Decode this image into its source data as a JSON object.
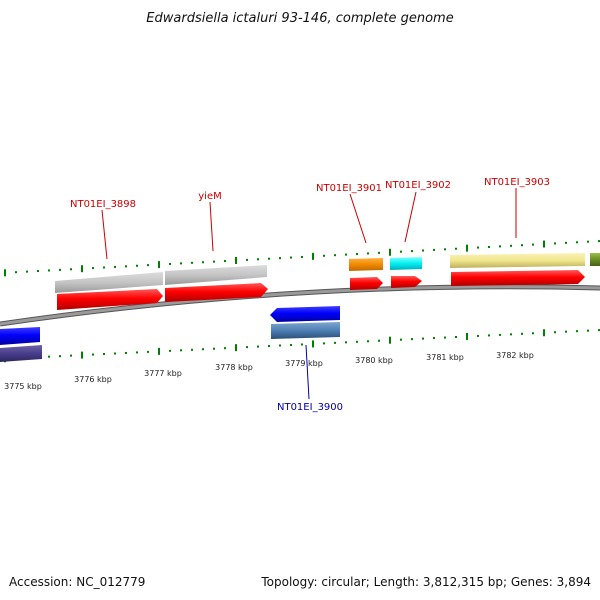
{
  "title": "Edwardsiella ictaluri 93-146, complete genome",
  "footer": {
    "accession": "Accession: NC_012779",
    "topology": "Topology: circular; Length: 3,812,315 bp; Genes: 3,894"
  },
  "scale": {
    "ticks": [
      "3775 kbp",
      "3776 kbp",
      "3777 kbp",
      "3778 kbp",
      "3779 kbp",
      "3780 kbp",
      "3781 kbp",
      "3782 kbp"
    ]
  },
  "genes": [
    {
      "label": "NT01EI_3898",
      "color": "#cc0000"
    },
    {
      "label": "yieM",
      "color": "#cc0000"
    },
    {
      "label": "NT01EI_3901",
      "color": "#cc0000"
    },
    {
      "label": "NT01EI_3902",
      "color": "#cc0000"
    },
    {
      "label": "NT01EI_3903",
      "color": "#cc0000"
    },
    {
      "label": "NT01EI_3900",
      "color": "#0000aa"
    }
  ],
  "colors": {
    "forward_cds": "#ff0000",
    "reverse_cds": "#0000ff",
    "gc_track": "#008000",
    "backbone": "#888888"
  }
}
